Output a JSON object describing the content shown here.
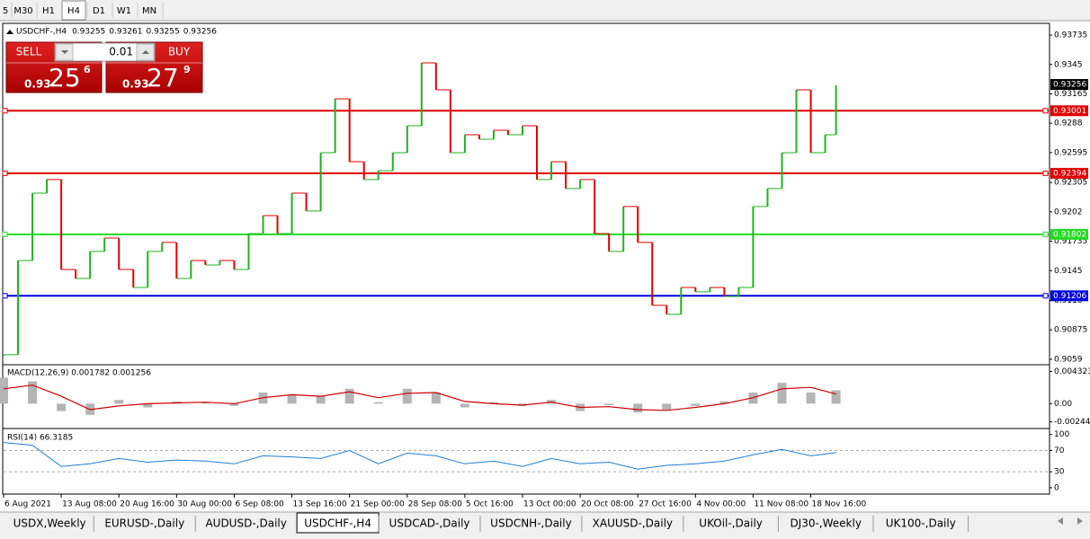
{
  "toolbar": [
    "5",
    "M30",
    "H1",
    "H4",
    "D1",
    "W1",
    "MN"
  ],
  "active_timeframe": "H4",
  "trade_panel": {
    "sell": "SELL",
    "buy": "BUY",
    "lot": "0.01",
    "bid": {
      "big": "0.93",
      "pips": "25",
      "point": "6"
    },
    "ask": {
      "big": "0.93",
      "pips": "27",
      "point": "9"
    }
  },
  "chart_data": [
    {
      "type": "price",
      "title": "USDCHF-,H4",
      "ohlc": [
        0.93255,
        0.93261,
        0.93255,
        0.93256
      ],
      "up_color": "#22b022",
      "down_color": "#e00000",
      "x": [
        0,
        4,
        8,
        12,
        16,
        20,
        24,
        28,
        32,
        36,
        40,
        44,
        48,
        52,
        56,
        60,
        64,
        68,
        72,
        76,
        80,
        84,
        88,
        92,
        96,
        100,
        104,
        108,
        112,
        116,
        120,
        124,
        128,
        132,
        136,
        140,
        144,
        148,
        152,
        156,
        160,
        164,
        168,
        172,
        176,
        180,
        184,
        188,
        192,
        196,
        200,
        204,
        208,
        212,
        216,
        220,
        224,
        228,
        231
      ],
      "values": [
        0.90634,
        0.91548,
        0.92202,
        0.92333,
        0.91461,
        0.91374,
        0.91636,
        0.91766,
        0.91461,
        0.91287,
        0.91636,
        0.91723,
        0.91374,
        0.91548,
        0.91505,
        0.91548,
        0.91461,
        0.9181,
        0.91984,
        0.9181,
        0.92202,
        0.92028,
        0.92594,
        0.93117,
        0.92507,
        0.92333,
        0.9242,
        0.92594,
        0.92855,
        0.93465,
        0.93204,
        0.92594,
        0.92768,
        0.92725,
        0.92812,
        0.92768,
        0.92855,
        0.92333,
        0.92507,
        0.92246,
        0.92333,
        0.9181,
        0.91636,
        0.92072,
        0.91723,
        0.91113,
        0.91026,
        0.91287,
        0.91244,
        0.91287,
        0.912,
        0.91287,
        0.92072,
        0.92246,
        0.92594,
        0.93204,
        0.92594,
        0.92768,
        0.93247
      ],
      "xlim": [
        0,
        290
      ],
      "xticks": [
        {
          "value": 0,
          "label": "6 Aug 2021"
        },
        {
          "value": 16,
          "label": "13 Aug 08:00"
        },
        {
          "value": 32,
          "label": "20 Aug 16:00"
        },
        {
          "value": 48,
          "label": "30 Aug 00:00"
        },
        {
          "value": 64,
          "label": "6 Sep 08:00"
        },
        {
          "value": 80,
          "label": "13 Sep 16:00"
        },
        {
          "value": 96,
          "label": "21 Sep 00:00"
        },
        {
          "value": 112,
          "label": "28 Sep 08:00"
        },
        {
          "value": 128,
          "label": "5 Oct 16:00"
        },
        {
          "value": 144,
          "label": "13 Oct 00:00"
        },
        {
          "value": 160,
          "label": "20 Oct 08:00"
        },
        {
          "value": 176,
          "label": "27 Oct 16:00"
        },
        {
          "value": 192,
          "label": "4 Nov 00:00"
        },
        {
          "value": 208,
          "label": "11 Nov 08:00"
        },
        {
          "value": 224,
          "label": "18 Nov 16:00"
        }
      ],
      "ylim": [
        0.90546,
        0.9384
      ],
      "yticks": [
        0.93735,
        0.9345,
        0.93165,
        0.9288,
        0.92595,
        0.92305,
        0.9202,
        0.91735,
        0.9145,
        0.9116,
        0.90875,
        0.9059
      ],
      "levels": [
        {
          "value": 0.93001,
          "color": "#e00000"
        },
        {
          "value": 0.92394,
          "color": "#e00000"
        },
        {
          "value": 0.91802,
          "color": "#22dd22"
        },
        {
          "value": 0.91206,
          "color": "#0000dd"
        }
      ]
    },
    {
      "type": "macd",
      "title": "MACD(12,26,9) 0.001782 0.001256",
      "color": "#b4b4b4",
      "signal_color": "#d00000",
      "x": [
        0,
        8,
        16,
        24,
        32,
        40,
        48,
        56,
        64,
        72,
        80,
        88,
        96,
        104,
        112,
        120,
        128,
        136,
        144,
        152,
        160,
        168,
        176,
        184,
        192,
        200,
        208,
        216,
        224,
        231
      ],
      "values": [
        0.0035,
        0.003,
        -0.001,
        -0.0015,
        0.0005,
        -0.0005,
        0.0003,
        0.0002,
        -0.0003,
        0.0015,
        0.0012,
        0.001,
        0.002,
        0.0002,
        0.002,
        0.0015,
        -0.0005,
        0.0002,
        -0.0003,
        0.0005,
        -0.001,
        -0.0002,
        -0.0012,
        -0.0008,
        -0.0003,
        0.0003,
        0.0015,
        0.0028,
        0.0015,
        0.0018
      ],
      "signal": [
        0.002,
        0.0025,
        0.001,
        -0.0008,
        -0.0003,
        0,
        0.0001,
        0.0002,
        0,
        0.0008,
        0.0012,
        0.001,
        0.0016,
        0.0008,
        0.0014,
        0.0015,
        0.0003,
        0,
        -0.0002,
        0.0002,
        -0.0005,
        -0.0004,
        -0.0008,
        -0.0009,
        -0.0005,
        0,
        0.0008,
        0.002,
        0.0022,
        0.0013
      ],
      "ylim": [
        -0.0031,
        0.005
      ],
      "yticks": [
        0.004323,
        {
          "value": 0,
          "label": "0.00"
        },
        -0.002445
      ]
    },
    {
      "type": "rsi",
      "title": "RSI(14) 66.3185",
      "color": "#1e7fd0",
      "x": [
        0,
        8,
        16,
        24,
        32,
        40,
        48,
        56,
        64,
        72,
        80,
        88,
        96,
        104,
        112,
        120,
        128,
        136,
        144,
        152,
        160,
        168,
        176,
        184,
        192,
        200,
        208,
        216,
        224,
        231
      ],
      "values": [
        85,
        80,
        40,
        45,
        55,
        48,
        52,
        50,
        45,
        60,
        58,
        55,
        70,
        45,
        65,
        60,
        45,
        50,
        40,
        55,
        45,
        48,
        35,
        42,
        45,
        50,
        62,
        72,
        60,
        66
      ],
      "ylim": [
        -12,
        108
      ],
      "yticks": [
        100,
        70,
        30,
        0
      ],
      "levels": [
        70,
        30
      ]
    }
  ],
  "tabs": [
    "USDX,Weekly",
    "EURUSD-,Daily",
    "AUDUSD-,Daily",
    "USDCHF-,H4",
    "USDCAD-,Daily",
    "USDCNH-,Daily",
    "XAUUSD-,Daily",
    "UKOil-,Daily",
    "DJ30-,Weekly",
    "UK100-,Daily"
  ],
  "active_tab": "USDCHF-,H4"
}
